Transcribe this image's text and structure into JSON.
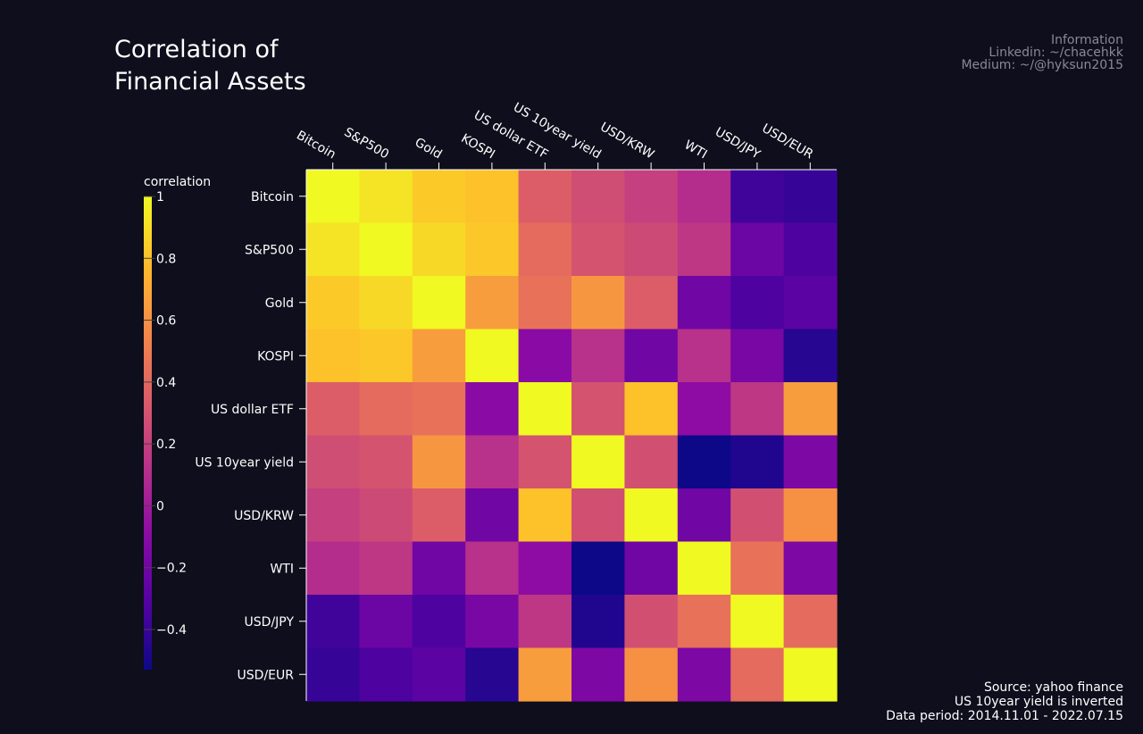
{
  "title": "Correlation of\nFinancial Assets",
  "info": {
    "heading": "Information",
    "linkedin": "Linkedin: ~/chacehkk",
    "medium": "Medium: ~/@hyksun2015"
  },
  "source": {
    "line1": "Source: yahoo finance",
    "line2": "US 10year yield is inverted",
    "line3": "Data period: 2014.11.01 - 2022.07.15"
  },
  "chart_data": {
    "type": "heatmap",
    "title": "Correlation of Financial Assets",
    "colorscale": "plasma",
    "zmin": -0.53,
    "zmax": 1,
    "colorbar": {
      "title": "correlation",
      "ticks": [
        1,
        0.8,
        0.6,
        0.4,
        0.2,
        0,
        -0.2,
        -0.4
      ],
      "tick_labels": [
        "1",
        "0.8",
        "0.6",
        "0.4",
        "0.2",
        "0",
        "−0.2",
        "−0.4"
      ]
    },
    "x_labels": [
      "Bitcoin",
      "S&P500",
      "Gold",
      "KOSPI",
      "US dollar ETF",
      "US 10year yield",
      "USD/KRW",
      "WTI",
      "USD/JPY",
      "USD/EUR"
    ],
    "y_labels": [
      "Bitcoin",
      "S&P500",
      "Gold",
      "KOSPI",
      "US dollar ETF",
      "US 10year yield",
      "USD/KRW",
      "WTI",
      "USD/JPY",
      "USD/EUR"
    ],
    "z": [
      [
        1.0,
        0.92,
        0.83,
        0.8,
        0.35,
        0.27,
        0.2,
        0.1,
        -0.37,
        -0.4
      ],
      [
        0.92,
        1.0,
        0.88,
        0.82,
        0.42,
        0.3,
        0.25,
        0.15,
        -0.22,
        -0.33
      ],
      [
        0.83,
        0.88,
        1.0,
        0.65,
        0.45,
        0.62,
        0.35,
        -0.2,
        -0.33,
        -0.28
      ],
      [
        0.8,
        0.82,
        0.65,
        1.0,
        -0.1,
        0.12,
        -0.2,
        0.12,
        -0.17,
        -0.45
      ],
      [
        0.35,
        0.42,
        0.45,
        -0.1,
        1.0,
        0.3,
        0.8,
        -0.08,
        0.15,
        0.65
      ],
      [
        0.27,
        0.3,
        0.62,
        0.12,
        0.3,
        1.0,
        0.28,
        -0.53,
        -0.47,
        -0.15
      ],
      [
        0.2,
        0.25,
        0.35,
        -0.2,
        0.8,
        0.28,
        1.0,
        -0.2,
        0.28,
        0.6
      ],
      [
        0.1,
        0.15,
        -0.2,
        0.12,
        -0.08,
        -0.53,
        -0.2,
        1.0,
        0.45,
        -0.15
      ],
      [
        -0.37,
        -0.22,
        -0.33,
        -0.17,
        0.15,
        -0.47,
        0.28,
        0.45,
        1.0,
        0.42
      ],
      [
        -0.4,
        -0.33,
        -0.28,
        -0.45,
        0.65,
        -0.15,
        0.6,
        -0.15,
        0.42,
        1.0
      ]
    ]
  }
}
